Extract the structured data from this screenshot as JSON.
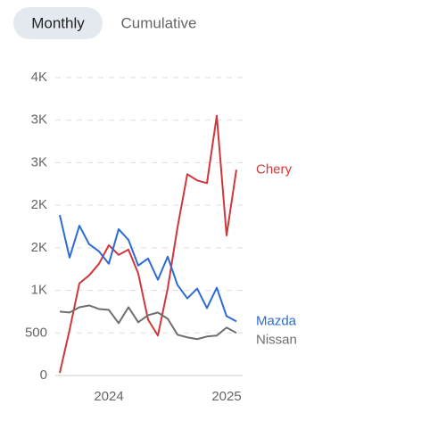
{
  "tabs": [
    "Monthly",
    "Cumulative"
  ],
  "chart_data": {
    "type": "line",
    "categories": [
      null,
      null,
      null,
      null,
      null,
      "2024",
      null,
      null,
      null,
      null,
      null,
      null,
      null,
      null,
      null,
      null,
      null,
      "2025",
      null
    ],
    "series": [
      {
        "name": "Chery",
        "color": "#d0373a",
        "values": [
          30,
          535,
          1083,
          1177,
          1313,
          1531,
          1417,
          1479,
          1198,
          656,
          469,
          1021,
          1740,
          2365,
          2292,
          2260,
          3052,
          1646,
          2417
        ]
      },
      {
        "name": "Mazda",
        "color": "#2d6bd3",
        "values": [
          1885,
          1385,
          1760,
          1542,
          1458,
          1313,
          1719,
          1594,
          1292,
          1375,
          1125,
          1396,
          1063,
          906,
          1021,
          792,
          1031,
          698,
          635
        ]
      },
      {
        "name": "Nissan",
        "color": "#6e6e6e",
        "values": [
          750,
          740,
          802,
          823,
          781,
          771,
          615,
          802,
          625,
          708,
          740,
          667,
          479,
          448,
          427,
          458,
          469,
          563,
          500
        ]
      }
    ],
    "ylim": [
      0,
      3500
    ],
    "yticks": [
      0,
      500,
      {
        "value": 1000,
        "label": "1K"
      },
      {
        "value": 1500,
        "label": "2K"
      },
      {
        "value": 2000,
        "label": "2K"
      },
      {
        "value": 2500,
        "label": "3K"
      },
      {
        "value": 3000,
        "label": "3K"
      },
      {
        "value": 3500,
        "label": "4K"
      }
    ],
    "grid": true
  }
}
